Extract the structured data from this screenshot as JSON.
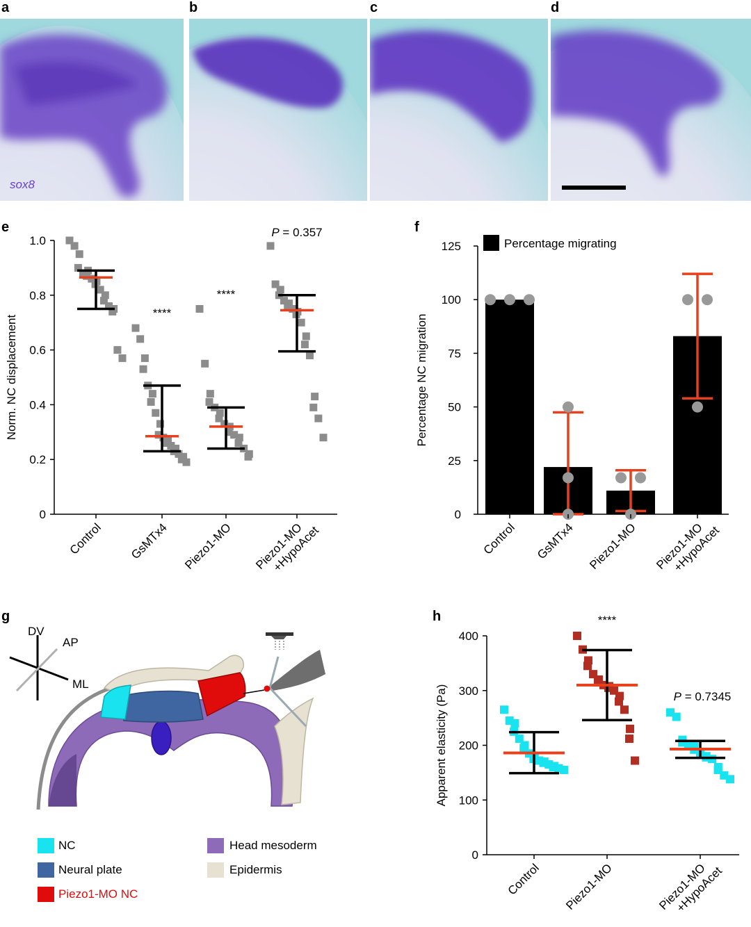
{
  "panels": {
    "a": "a",
    "b": "b",
    "c": "c",
    "d": "d",
    "e": "e",
    "f": "f",
    "g": "g",
    "h": "h"
  },
  "micrographs": {
    "gene_label": "sox8",
    "background_color": "#9fd9dd",
    "stain_color": "#5b2fb8"
  },
  "chart_data": [
    {
      "id": "e",
      "type": "scatter",
      "ylabel": "Norm. NC displacement",
      "ylim": [
        0,
        1.0
      ],
      "yticks": [
        "0",
        "0.2",
        "0.4",
        "0.6",
        "0.8",
        "1.0"
      ],
      "categories": [
        "Control",
        "GsMTx4",
        "Piezo1-MO",
        "Piezo1-MO\n+HypoAcet"
      ],
      "category_lines": [
        [
          "Control"
        ],
        [
          "GsMTx4"
        ],
        [
          "Piezo1-MO"
        ],
        [
          "Piezo1-MO",
          "+HypoAcet"
        ]
      ],
      "annotations": [
        "",
        "****",
        "****",
        "P = 0.357"
      ],
      "series": [
        {
          "values": [
            1.0,
            0.98,
            0.95,
            0.9,
            0.88,
            0.89,
            0.87,
            0.86,
            0.85,
            0.84,
            0.82,
            0.8,
            0.78,
            0.76,
            0.75,
            0.74,
            0.6,
            0.57
          ],
          "mean": 0.865,
          "upper": 0.89,
          "lower": 0.75
        },
        {
          "values": [
            0.68,
            0.64,
            0.57,
            0.53,
            0.47,
            0.44,
            0.41,
            0.37,
            0.33,
            0.29,
            0.28,
            0.27,
            0.26,
            0.25,
            0.24,
            0.23,
            0.22,
            0.21,
            0.2,
            0.19
          ],
          "mean": 0.285,
          "upper": 0.47,
          "lower": 0.23
        },
        {
          "values": [
            0.75,
            0.55,
            0.44,
            0.41,
            0.39,
            0.37,
            0.35,
            0.33,
            0.32,
            0.3,
            0.29,
            0.28,
            0.26,
            0.24,
            0.22,
            0.21
          ],
          "mean": 0.32,
          "upper": 0.39,
          "lower": 0.24
        },
        {
          "values": [
            0.98,
            0.84,
            0.82,
            0.8,
            0.78,
            0.77,
            0.76,
            0.75,
            0.74,
            0.73,
            0.7,
            0.65,
            0.62,
            0.58,
            0.43,
            0.39,
            0.35,
            0.28
          ],
          "mean": 0.745,
          "upper": 0.8,
          "lower": 0.595
        }
      ],
      "point_color": "#8c8c8c",
      "mean_color": "#e8401c",
      "error_color": "#000000"
    },
    {
      "id": "f",
      "type": "bar",
      "ylabel": "Percentage NC migration",
      "ylim": [
        0,
        125
      ],
      "yticks": [
        "0",
        "25",
        "50",
        "75",
        "100",
        "125"
      ],
      "legend": "Percentage migrating",
      "legend_position": "top-left",
      "categories": [
        "Control",
        "GsMTx4",
        "Piezo1-MO",
        "Piezo1-MO\n+HypoAcet"
      ],
      "category_lines": [
        [
          "Control"
        ],
        [
          "GsMTx4"
        ],
        [
          "Piezo1-MO"
        ],
        [
          "Piezo1-MO",
          "+HypoAcet"
        ]
      ],
      "values": [
        100,
        22,
        11,
        83
      ],
      "error_upper": [
        100,
        47.5,
        20.5,
        112
      ],
      "error_lower": [
        100,
        0,
        1.5,
        54
      ],
      "points": [
        [
          100,
          100,
          100
        ],
        [
          50,
          17,
          0
        ],
        [
          17,
          17,
          0
        ],
        [
          100,
          100,
          50
        ]
      ],
      "bar_color": "#000000",
      "error_color": "#e8401c",
      "point_color": "#999999"
    },
    {
      "id": "h",
      "type": "scatter",
      "ylabel": "Apparent elasticity (Pa)",
      "ylim": [
        0,
        400
      ],
      "yticks": [
        "0",
        "100",
        "200",
        "300",
        "400"
      ],
      "categories": [
        "Control",
        "Piezo1-MO",
        "Piezo1-MO\n+HypoAcet"
      ],
      "category_lines": [
        [
          "Control"
        ],
        [
          "Piezo1-MO"
        ],
        [
          "Piezo1-MO",
          "+HypoAcet"
        ]
      ],
      "annotations": [
        "",
        "****",
        "P = 0.7345"
      ],
      "series": [
        {
          "values": [
            265,
            245,
            240,
            225,
            212,
            200,
            195,
            185,
            180,
            175,
            172,
            170,
            168,
            165,
            162,
            160,
            158,
            155
          ],
          "mean": 186,
          "upper": 224,
          "lower": 149,
          "color": "#19e3ee"
        },
        {
          "values": [
            400,
            375,
            355,
            345,
            330,
            320,
            315,
            310,
            308,
            305,
            300,
            290,
            280,
            265,
            230,
            212,
            172
          ],
          "mean": 310,
          "upper": 374,
          "lower": 246,
          "color": "#b22e22"
        },
        {
          "values": [
            260,
            252,
            210,
            205,
            200,
            198,
            192,
            185,
            180,
            178,
            175,
            160,
            155,
            145,
            138
          ],
          "mean": 193,
          "upper": 208,
          "lower": 177,
          "color": "#19e3ee"
        }
      ],
      "mean_color": "#e8401c",
      "error_color": "#000000"
    }
  ],
  "schematic": {
    "axes": {
      "dv": "DV",
      "ap": "AP",
      "ml": "ML"
    },
    "colors": {
      "nc": "#19e3ee",
      "neural_plate": "#3f66a0",
      "piezo": "#e00b0b",
      "mesoderm": "#8e6bb8",
      "epidermis": "#e7e1d2"
    }
  },
  "legend_g": [
    {
      "label": "NC",
      "color": "#19e3ee",
      "text_color": "#000000"
    },
    {
      "label": "Neural plate",
      "color": "#3f66a0",
      "text_color": "#000000"
    },
    {
      "label": "Piezo1-MO NC",
      "color": "#e00b0b",
      "text_color": "#e00b0b"
    },
    {
      "label": "Head mesoderm",
      "color": "#8e6bb8",
      "text_color": "#000000"
    },
    {
      "label": "Epidermis",
      "color": "#e7e1d2",
      "text_color": "#000000"
    }
  ]
}
